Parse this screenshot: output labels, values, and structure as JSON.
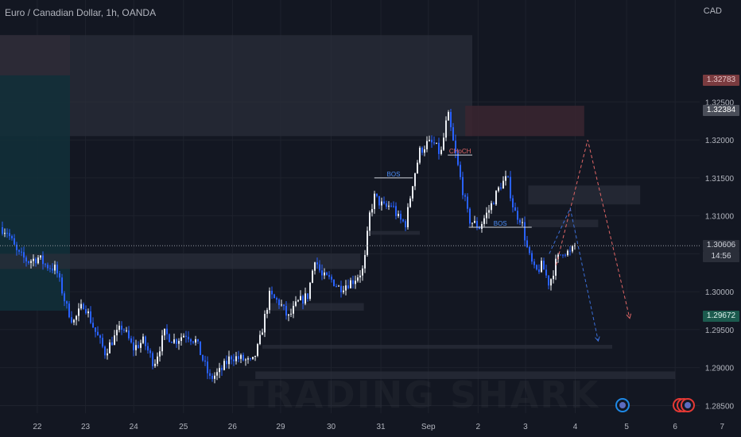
{
  "header": {
    "title": "Euro / Canadian Dollar, 1h, OANDA",
    "currency": "CAD"
  },
  "price_tags": [
    {
      "label": "1.32783",
      "value": 1.32783,
      "bg": "#7a3b3f",
      "fg": "#e7c5c8"
    },
    {
      "label": "1.32384",
      "value": 1.32384,
      "bg": "#4a4e59",
      "fg": "#ffffff"
    },
    {
      "label": "1.30606",
      "value": 1.30606,
      "bg": "#2a2e39",
      "fg": "#d1d4dc",
      "sub": "14:56"
    },
    {
      "label": "1.29672",
      "value": 1.29672,
      "bg": "#1c5a4e",
      "fg": "#d9f0ea"
    }
  ],
  "colors": {
    "background": "#131722",
    "bull": "#e9ecf2",
    "bear": "#2962ff",
    "grid": "#1e222d",
    "axis_text": "#b2b5be",
    "zone": "#2a2e39",
    "supply_zone": "#3b2630",
    "demand_zone": "#12303a"
  },
  "chart_data": {
    "type": "candlestick",
    "ylim": [
      1.284,
      1.3355
    ],
    "yticks": [
      1.285,
      1.29,
      1.295,
      1.3,
      1.305,
      1.31,
      1.315,
      1.32,
      1.325
    ],
    "ytick_labels": [
      "1.28500",
      "1.29000",
      "1.29500",
      "1.30000",
      "1.30500",
      "1.31000",
      "1.31500",
      "1.32000",
      "1.32500"
    ],
    "xticks": [
      {
        "label": "22",
        "pos": 0.0533
      },
      {
        "label": "23",
        "pos": 0.1222
      },
      {
        "label": "24",
        "pos": 0.1911
      },
      {
        "label": "25",
        "pos": 0.2622
      },
      {
        "label": "26",
        "pos": 0.3322
      },
      {
        "label": "29",
        "pos": 0.4011
      },
      {
        "label": "30",
        "pos": 0.4733
      },
      {
        "label": "31",
        "pos": 0.5444
      },
      {
        "label": "Sep",
        "pos": 0.6122
      },
      {
        "label": "2",
        "pos": 0.6833
      },
      {
        "label": "3",
        "pos": 0.7511
      },
      {
        "label": "4",
        "pos": 0.8222
      },
      {
        "label": "5",
        "pos": 0.8956
      },
      {
        "label": "6",
        "pos": 0.965
      },
      {
        "label": "7",
        "pos": 1.0322
      }
    ],
    "path": [
      [
        0.0,
        1.3085
      ],
      [
        0.01,
        1.308
      ],
      [
        0.025,
        1.305
      ],
      [
        0.04,
        1.304
      ],
      [
        0.055,
        1.3045
      ],
      [
        0.065,
        1.3035
      ],
      [
        0.08,
        1.303
      ],
      [
        0.095,
        1.298
      ],
      [
        0.105,
        1.296
      ],
      [
        0.12,
        1.2985
      ],
      [
        0.135,
        1.295
      ],
      [
        0.15,
        1.292
      ],
      [
        0.16,
        1.2935
      ],
      [
        0.175,
        1.2955
      ],
      [
        0.19,
        1.2925
      ],
      [
        0.205,
        1.2935
      ],
      [
        0.22,
        1.2905
      ],
      [
        0.235,
        1.2945
      ],
      [
        0.25,
        1.2935
      ],
      [
        0.265,
        1.2945
      ],
      [
        0.28,
        1.2935
      ],
      [
        0.3,
        1.2885
      ],
      [
        0.315,
        1.2895
      ],
      [
        0.33,
        1.2915
      ],
      [
        0.35,
        1.291
      ],
      [
        0.36,
        1.2905
      ],
      [
        0.37,
        1.293
      ],
      [
        0.385,
        1.2995
      ],
      [
        0.4,
        1.2985
      ],
      [
        0.412,
        1.2965
      ],
      [
        0.425,
        1.2985
      ],
      [
        0.44,
        1.2995
      ],
      [
        0.45,
        1.3045
      ],
      [
        0.46,
        1.302
      ],
      [
        0.475,
        1.3015
      ],
      [
        0.485,
        1.3005
      ],
      [
        0.495,
        1.301
      ],
      [
        0.505,
        1.3015
      ],
      [
        0.52,
        1.303
      ],
      [
        0.528,
        1.31
      ],
      [
        0.535,
        1.3125
      ],
      [
        0.55,
        1.311
      ],
      [
        0.56,
        1.3115
      ],
      [
        0.57,
        1.3095
      ],
      [
        0.58,
        1.309
      ],
      [
        0.59,
        1.3145
      ],
      [
        0.6,
        1.3185
      ],
      [
        0.61,
        1.3195
      ],
      [
        0.62,
        1.3195
      ],
      [
        0.63,
        1.318
      ],
      [
        0.64,
        1.3235
      ],
      [
        0.65,
        1.3185
      ],
      [
        0.66,
        1.314
      ],
      [
        0.67,
        1.3095
      ],
      [
        0.685,
        1.3085
      ],
      [
        0.7,
        1.311
      ],
      [
        0.715,
        1.314
      ],
      [
        0.725,
        1.315
      ],
      [
        0.735,
        1.3105
      ],
      [
        0.745,
        1.3095
      ],
      [
        0.755,
        1.305
      ],
      [
        0.765,
        1.3025
      ],
      [
        0.775,
        1.3035
      ],
      [
        0.785,
        1.301
      ],
      [
        0.795,
        1.304
      ],
      [
        0.805,
        1.3055
      ],
      [
        0.815,
        1.305
      ],
      [
        0.822,
        1.3061
      ]
    ],
    "projections": [
      {
        "style": "dashed",
        "color": "#e06666",
        "points": [
          [
            0.795,
            1.3035
          ],
          [
            0.84,
            1.32
          ],
          [
            0.9,
            1.2965
          ]
        ]
      },
      {
        "style": "dashed",
        "color": "#3b6fd8",
        "points": [
          [
            0.785,
            1.305
          ],
          [
            0.815,
            1.311
          ],
          [
            0.855,
            1.2935
          ]
        ]
      }
    ],
    "zones": [
      {
        "kind": "supply",
        "x": [
          0.0,
          0.1
        ],
        "y": [
          1.3285,
          1.3338
        ]
      },
      {
        "kind": "neutral",
        "x": [
          0.0,
          0.675
        ],
        "y": [
          1.3205,
          1.3338
        ]
      },
      {
        "kind": "demand",
        "x": [
          0.0,
          0.1
        ],
        "y": [
          1.2975,
          1.3285
        ]
      },
      {
        "kind": "supply",
        "x": [
          0.665,
          0.835
        ],
        "y": [
          1.3205,
          1.3245
        ]
      },
      {
        "kind": "neutral",
        "x": [
          0.755,
          0.915
        ],
        "y": [
          1.3115,
          1.314
        ]
      },
      {
        "kind": "neutral",
        "x": [
          0.755,
          0.855
        ],
        "y": [
          1.3085,
          1.3095
        ]
      },
      {
        "kind": "neutral",
        "x": [
          0.53,
          0.6
        ],
        "y": [
          1.3075,
          1.308
        ]
      },
      {
        "kind": "neutral",
        "x": [
          0.0,
          0.515
        ],
        "y": [
          1.303,
          1.305
        ]
      },
      {
        "kind": "neutral",
        "x": [
          0.385,
          0.52
        ],
        "y": [
          1.2975,
          1.2985
        ]
      },
      {
        "kind": "neutral",
        "x": [
          0.375,
          0.875
        ],
        "y": [
          1.2925,
          1.293
        ]
      },
      {
        "kind": "neutral",
        "x": [
          0.365,
          0.965
        ],
        "y": [
          1.2885,
          1.2895
        ]
      }
    ],
    "annotations": [
      {
        "text": "BOS",
        "x": [
          0.535,
          0.59
        ],
        "y": 1.315,
        "color": "#4b8cf5"
      },
      {
        "text": "CHoCH",
        "x": [
          0.64,
          0.675
        ],
        "y": 1.318,
        "color": "#e06666"
      },
      {
        "text": "BOS",
        "x": [
          0.67,
          0.76
        ],
        "y": 1.3085,
        "color": "#4b8cf5"
      }
    ],
    "current_price": 1.30606
  }
}
